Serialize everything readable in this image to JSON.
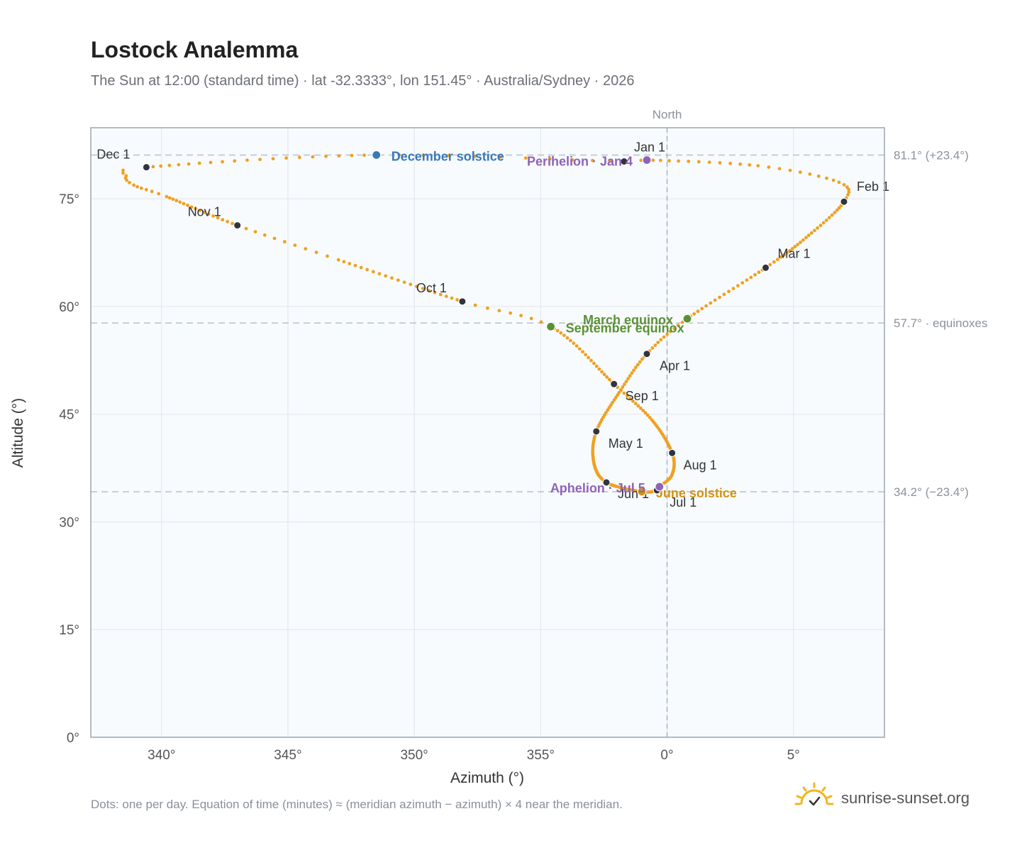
{
  "title": "Lostock Analemma",
  "subtitle": "The Sun at 12:00 (standard time) · lat -32.3333°, lon 151.45° · Australia/Sydney · 2026",
  "footnote": "Dots: one per day. Equation of time (minutes) ≈ (meridian azimuth − azimuth) × 4 near the meridian.",
  "brand": {
    "name": "sunrise-sunset.org",
    "icon": "sun-icon"
  },
  "chart_data": {
    "type": "scatter",
    "xlabel": "Azimuth (°)",
    "ylabel": "Altitude (°)",
    "xlim": [
      337.2,
      8.6
    ],
    "ylim": [
      0,
      84.9
    ],
    "x_ticks": [
      340,
      345,
      350,
      355,
      0,
      5
    ],
    "x_tick_labels": [
      "340°",
      "345°",
      "350°",
      "355°",
      "0°",
      "5°"
    ],
    "y_ticks": [
      0,
      15,
      30,
      45,
      60,
      75
    ],
    "y_tick_labels": [
      "0°",
      "15°",
      "30°",
      "45°",
      "60°",
      "75°"
    ],
    "grid": true,
    "meridian": {
      "azimuth": 0,
      "label": "North"
    },
    "reference_lines": [
      {
        "altitude": 81.1,
        "label": "81.1° (+23.4°)"
      },
      {
        "altitude": 57.7,
        "label": "57.7° · equinoxes"
      },
      {
        "altitude": 34.2,
        "label": "34.2° (−23.4°)"
      }
    ],
    "series": [
      {
        "type": "analemma-daily-dots",
        "color": "#f0a020",
        "anchors": [
          {
            "day": 1,
            "az": 358.3,
            "alt": 80.2
          },
          {
            "day": 4,
            "az": 359.2,
            "alt": 80.4
          },
          {
            "day": 16,
            "az": 3.6,
            "alt": 79.6
          },
          {
            "day": 25,
            "az": 6.8,
            "alt": 77.3
          },
          {
            "day": 32,
            "az": 7.0,
            "alt": 74.6
          },
          {
            "day": 47,
            "az": 5.5,
            "alt": 69.6
          },
          {
            "day": 60,
            "az": 3.9,
            "alt": 65.4
          },
          {
            "day": 79,
            "az": 0.8,
            "alt": 58.3
          },
          {
            "day": 91,
            "az": 359.2,
            "alt": 53.4
          },
          {
            "day": 105,
            "az": 358.1,
            "alt": 48.0
          },
          {
            "day": 121,
            "az": 357.2,
            "alt": 42.6
          },
          {
            "day": 136,
            "az": 357.1,
            "alt": 38.3
          },
          {
            "day": 152,
            "az": 357.6,
            "alt": 35.5
          },
          {
            "day": 172,
            "az": 359.0,
            "alt": 34.2
          },
          {
            "day": 182,
            "az": 359.6,
            "alt": 34.4
          },
          {
            "day": 186,
            "az": 359.7,
            "alt": 34.9
          },
          {
            "day": 200,
            "az": 360.2,
            "alt": 36.6
          },
          {
            "day": 213,
            "az": 360.2,
            "alt": 39.6
          },
          {
            "day": 230,
            "az": 359.4,
            "alt": 44.2
          },
          {
            "day": 244,
            "az": 357.9,
            "alt": 49.2
          },
          {
            "day": 266,
            "az": 355.4,
            "alt": 57.2
          },
          {
            "day": 274,
            "az": 351.9,
            "alt": 60.7
          },
          {
            "day": 295,
            "az": 347.0,
            "alt": 66.5
          },
          {
            "day": 305,
            "az": 343.0,
            "alt": 71.3
          },
          {
            "day": 322,
            "az": 340.2,
            "alt": 75.3
          },
          {
            "day": 328,
            "az": 338.9,
            "alt": 76.9
          },
          {
            "day": 332,
            "az": 338.6,
            "alt": 78.2
          },
          {
            "day": 335,
            "az": 339.4,
            "alt": 79.4
          },
          {
            "day": 355,
            "az": 348.5,
            "alt": 81.1
          },
          {
            "day": 366,
            "az": 358.3,
            "alt": 80.2
          }
        ]
      }
    ],
    "month_markers": [
      {
        "label": "Jan 1",
        "az": 358.3,
        "alt": 80.2,
        "dx": 14,
        "dy": -14,
        "anchor": "start"
      },
      {
        "label": "Feb 1",
        "az": 7.0,
        "alt": 74.6,
        "dx": 18,
        "dy": -15,
        "anchor": "start"
      },
      {
        "label": "Mar 1",
        "az": 3.9,
        "alt": 65.4,
        "dx": 17,
        "dy": -14,
        "anchor": "start"
      },
      {
        "label": "Apr 1",
        "az": 359.2,
        "alt": 53.4,
        "dx": 18,
        "dy": 23,
        "anchor": "start"
      },
      {
        "label": "May 1",
        "az": 357.2,
        "alt": 42.6,
        "dx": 17,
        "dy": 23,
        "anchor": "start"
      },
      {
        "label": "Jun 1",
        "az": 357.6,
        "alt": 35.5,
        "dx": 16,
        "dy": 22,
        "anchor": "start"
      },
      {
        "label": "Jul 1",
        "az": 359.6,
        "alt": 34.4,
        "dx": 18,
        "dy": 23,
        "anchor": "start"
      },
      {
        "label": "Aug 1",
        "az": 360.2,
        "alt": 39.6,
        "dx": 16,
        "dy": 23,
        "anchor": "start"
      },
      {
        "label": "Sep 1",
        "az": 357.9,
        "alt": 49.2,
        "dx": 16,
        "dy": 23,
        "anchor": "start"
      },
      {
        "label": "Oct 1",
        "az": 351.9,
        "alt": 60.7,
        "dx": -65,
        "dy": -13,
        "anchor": "start"
      },
      {
        "label": "Nov 1",
        "az": 343.0,
        "alt": 71.3,
        "dx": -70,
        "dy": -13,
        "anchor": "start"
      },
      {
        "label": "Dec 1",
        "az": 339.4,
        "alt": 79.4,
        "dx": -70,
        "dy": -12,
        "anchor": "start"
      }
    ],
    "events": [
      {
        "label": "December solstice",
        "az": 348.5,
        "alt": 81.1,
        "color": "#3a78b8",
        "dx": 21,
        "dy": 8,
        "anchor": "start"
      },
      {
        "label": "Perihelion · Jan 4",
        "az": 359.2,
        "alt": 80.4,
        "color": "#8e63b6",
        "dx": -20,
        "dy": 8,
        "anchor": "end"
      },
      {
        "label": "March equinox",
        "az": 0.8,
        "alt": 58.3,
        "color": "#5a9033",
        "dx": -20,
        "dy": 8,
        "anchor": "end"
      },
      {
        "label": "September equinox",
        "az": 355.4,
        "alt": 57.2,
        "color": "#5a9033",
        "dx": 21,
        "dy": 8,
        "anchor": "start"
      },
      {
        "label": "June solstice",
        "az": 359.0,
        "alt": 34.2,
        "color": "#d4930e",
        "dx": 20,
        "dy": 8,
        "anchor": "start"
      },
      {
        "label": "Aphelion · Jul 5",
        "az": 359.7,
        "alt": 34.9,
        "color": "#8e63b6",
        "dx": -20,
        "dy": 8,
        "anchor": "end"
      }
    ]
  }
}
